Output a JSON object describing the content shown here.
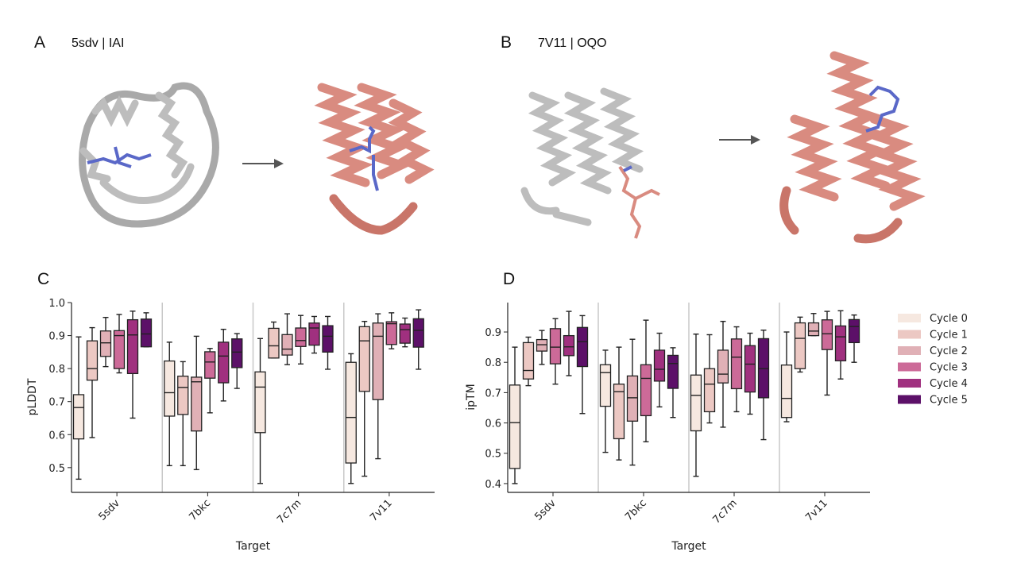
{
  "panels": {
    "A": {
      "label": "A",
      "title": "5sdv  | IAI"
    },
    "B": {
      "label": "B",
      "title": "7V11  | OQO"
    },
    "C": {
      "label": "C"
    },
    "D": {
      "label": "D"
    }
  },
  "colors": {
    "structure_before": "#bdbdbd",
    "structure_after": "#d98b80",
    "ligand": "#5a68c8",
    "cycles": [
      "#f6e8e0",
      "#ecc8c3",
      "#e0b0b6",
      "#cc6a98",
      "#a0307f",
      "#5c1068"
    ]
  },
  "legend": [
    "Cycle 0",
    "Cycle 1",
    "Cycle 2",
    "Cycle 3",
    "Cycle 4",
    "Cycle 5"
  ],
  "chart_data": [
    {
      "type": "box",
      "panel": "C",
      "xlabel": "Target",
      "ylabel": "pLDDT",
      "categories": [
        "5sdv",
        "7bkc",
        "7c7m",
        "7v11"
      ],
      "ylim": [
        0.425,
        1.0
      ],
      "yticks": [
        0.5,
        0.6,
        0.7,
        0.8,
        0.9,
        1.0
      ],
      "ytick_labels": [
        "0.5",
        "0.6",
        "0.7",
        "0.8",
        "0.9",
        "1.0"
      ],
      "stat_order": [
        "whislo",
        "q1",
        "med",
        "q3",
        "whishi"
      ],
      "series": [
        {
          "name": "Cycle 0",
          "values": [
            [
              0.465,
              0.587,
              0.682,
              0.721,
              0.896
            ],
            [
              0.506,
              0.656,
              0.727,
              0.823,
              0.88
            ],
            [
              0.452,
              0.606,
              0.744,
              0.79,
              0.891
            ],
            [
              0.452,
              0.514,
              0.652,
              0.819,
              0.845
            ]
          ]
        },
        {
          "name": "Cycle 1",
          "values": [
            [
              0.591,
              0.765,
              0.8,
              0.884,
              0.924
            ],
            [
              0.506,
              0.661,
              0.743,
              0.777,
              0.821
            ],
            [
              0.832,
              0.832,
              0.869,
              0.922,
              0.941
            ],
            [
              0.474,
              0.731,
              0.884,
              0.927,
              0.943
            ]
          ]
        },
        {
          "name": "Cycle 2",
          "values": [
            [
              0.806,
              0.837,
              0.878,
              0.914,
              0.955
            ],
            [
              0.494,
              0.611,
              0.76,
              0.774,
              0.898
            ],
            [
              0.812,
              0.841,
              0.859,
              0.903,
              0.966
            ],
            [
              0.527,
              0.706,
              0.898,
              0.938,
              0.966
            ]
          ]
        },
        {
          "name": "Cycle 3",
          "values": [
            [
              0.787,
              0.8,
              0.9,
              0.915,
              0.964
            ],
            [
              0.666,
              0.771,
              0.82,
              0.851,
              0.861
            ],
            [
              0.814,
              0.867,
              0.885,
              0.923,
              0.961
            ],
            [
              0.86,
              0.873,
              0.936,
              0.942,
              0.969
            ]
          ]
        },
        {
          "name": "Cycle 4",
          "values": [
            [
              0.65,
              0.785,
              0.902,
              0.948,
              0.974
            ],
            [
              0.702,
              0.757,
              0.838,
              0.88,
              0.919
            ],
            [
              0.847,
              0.871,
              0.923,
              0.938,
              0.958
            ],
            [
              0.866,
              0.877,
              0.918,
              0.935,
              0.953
            ]
          ]
        },
        {
          "name": "Cycle 5",
          "values": [
            [
              0.866,
              0.866,
              0.905,
              0.95,
              0.969
            ],
            [
              0.74,
              0.803,
              0.85,
              0.89,
              0.906
            ],
            [
              0.798,
              0.85,
              0.898,
              0.93,
              0.958
            ],
            [
              0.798,
              0.865,
              0.916,
              0.951,
              0.978
            ]
          ]
        }
      ]
    },
    {
      "type": "box",
      "panel": "D",
      "xlabel": "Target",
      "ylabel": "ipTM",
      "categories": [
        "5sdv",
        "7bkc",
        "7c7m",
        "7v11"
      ],
      "ylim": [
        0.371,
        0.997
      ],
      "yticks": [
        0.4,
        0.5,
        0.6,
        0.7,
        0.8,
        0.9
      ],
      "ytick_labels": [
        "0.4",
        "0.5",
        "0.6",
        "0.7",
        "0.8",
        "0.9"
      ],
      "stat_order": [
        "whislo",
        "q1",
        "med",
        "q3",
        "whishi"
      ],
      "series": [
        {
          "name": "Cycle 0",
          "values": [
            [
              0.4,
              0.45,
              0.601,
              0.725,
              0.85
            ],
            [
              0.503,
              0.655,
              0.766,
              0.792,
              0.84
            ],
            [
              0.424,
              0.574,
              0.691,
              0.758,
              0.893
            ],
            [
              0.604,
              0.618,
              0.681,
              0.791,
              0.9
            ]
          ]
        },
        {
          "name": "Cycle 1",
          "values": [
            [
              0.723,
              0.745,
              0.773,
              0.865,
              0.883
            ],
            [
              0.478,
              0.548,
              0.703,
              0.728,
              0.85
            ],
            [
              0.6,
              0.637,
              0.728,
              0.779,
              0.891
            ],
            [
              0.768,
              0.779,
              0.879,
              0.93,
              0.949
            ]
          ]
        },
        {
          "name": "Cycle 2",
          "values": [
            [
              0.793,
              0.837,
              0.858,
              0.875,
              0.905
            ],
            [
              0.461,
              0.606,
              0.683,
              0.755,
              0.876
            ],
            [
              0.586,
              0.732,
              0.761,
              0.84,
              0.935
            ],
            [
              0.888,
              0.888,
              0.903,
              0.93,
              0.961
            ]
          ]
        },
        {
          "name": "Cycle 3",
          "values": [
            [
              0.728,
              0.795,
              0.85,
              0.911,
              0.944
            ],
            [
              0.538,
              0.624,
              0.747,
              0.792,
              0.939
            ],
            [
              0.637,
              0.713,
              0.817,
              0.877,
              0.917
            ],
            [
              0.692,
              0.842,
              0.894,
              0.94,
              0.968
            ]
          ]
        },
        {
          "name": "Cycle 4",
          "values": [
            [
              0.756,
              0.822,
              0.851,
              0.888,
              0.968
            ],
            [
              0.653,
              0.738,
              0.777,
              0.84,
              0.896
            ],
            [
              0.629,
              0.702,
              0.794,
              0.855,
              0.896
            ],
            [
              0.745,
              0.805,
              0.884,
              0.92,
              0.97
            ]
          ]
        },
        {
          "name": "Cycle 5",
          "values": [
            [
              0.631,
              0.786,
              0.868,
              0.915,
              0.954
            ],
            [
              0.618,
              0.714,
              0.796,
              0.823,
              0.848
            ],
            [
              0.545,
              0.683,
              0.779,
              0.878,
              0.906
            ],
            [
              0.8,
              0.865,
              0.918,
              0.941,
              0.956
            ]
          ]
        }
      ]
    }
  ]
}
